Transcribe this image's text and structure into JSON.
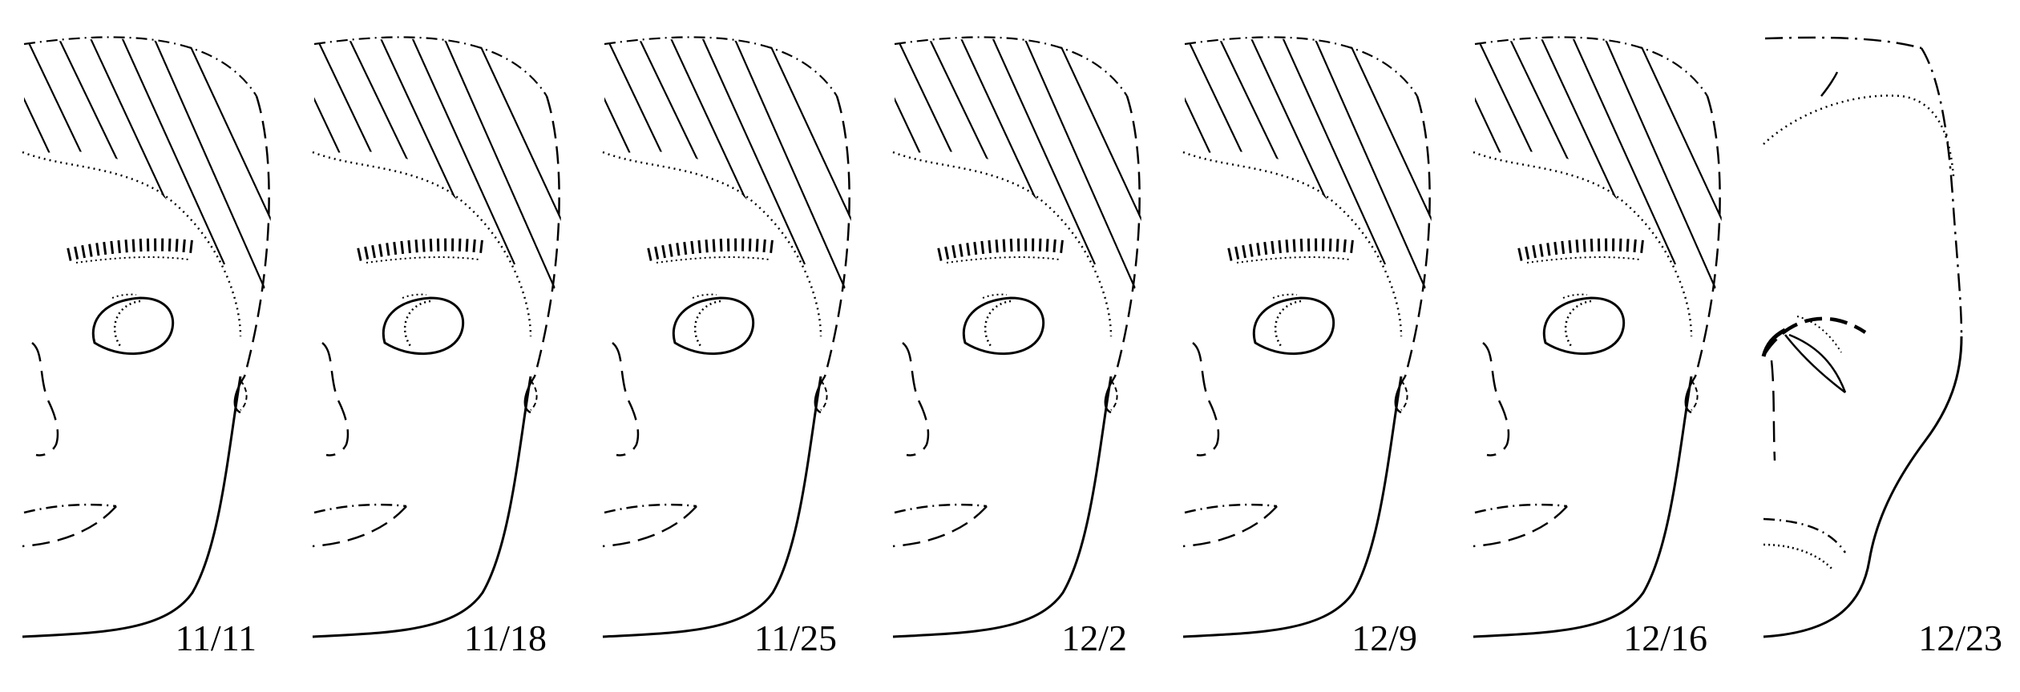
{
  "panels": [
    {
      "date": "11/11"
    },
    {
      "date": "11/18"
    },
    {
      "date": "11/25"
    },
    {
      "date": "12/2"
    },
    {
      "date": "12/9"
    },
    {
      "date": "12/16"
    },
    {
      "date": "12/23"
    }
  ],
  "colors": {
    "stroke": "#000000",
    "background": "#ffffff"
  }
}
